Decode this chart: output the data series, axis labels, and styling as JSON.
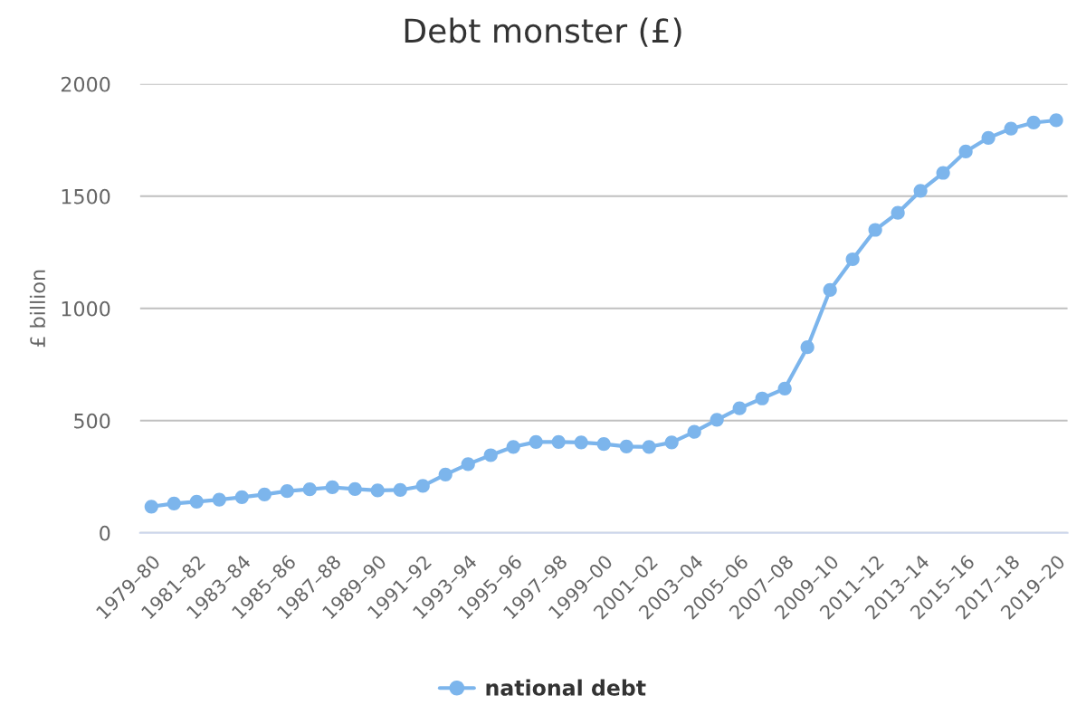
{
  "chart_data": {
    "type": "line",
    "title": "Debt monster (£)",
    "ylabel": "£ billion",
    "categories": [
      "1979–80",
      null,
      "1981–82",
      null,
      "1983–84",
      null,
      "1985–86",
      null,
      "1987–88",
      null,
      "1989–90",
      null,
      "1991–92",
      null,
      "1993–94",
      null,
      "1995–96",
      null,
      "1997–98",
      null,
      "1999–00",
      null,
      "2001–02",
      null,
      "2003–04",
      null,
      "2005–06",
      null,
      "2007–08",
      null,
      "2009–10",
      null,
      "2011–12",
      null,
      "2013–14",
      null,
      "2015–16",
      null,
      "2017–18",
      null,
      "2019–20"
    ],
    "series": [
      {
        "name": "national debt",
        "color": "#7cb5ec",
        "values": [
          117,
          131,
          139,
          148,
          159,
          171,
          186,
          194,
          203,
          195,
          189,
          191,
          209,
          260,
          306,
          346,
          383,
          405,
          405,
          403,
          396,
          385,
          383,
          403,
          450,
          504,
          555,
          599,
          643,
          827,
          1082,
          1219,
          1350,
          1426,
          1524,
          1604,
          1699,
          1760,
          1801,
          1828,
          1838
        ]
      }
    ],
    "ylim": [
      0,
      2000
    ],
    "yticks": [
      0,
      500,
      1000,
      1500,
      2000
    ],
    "grid": "y",
    "legend": "bottom",
    "marker": "circle",
    "line_style": "solid"
  }
}
